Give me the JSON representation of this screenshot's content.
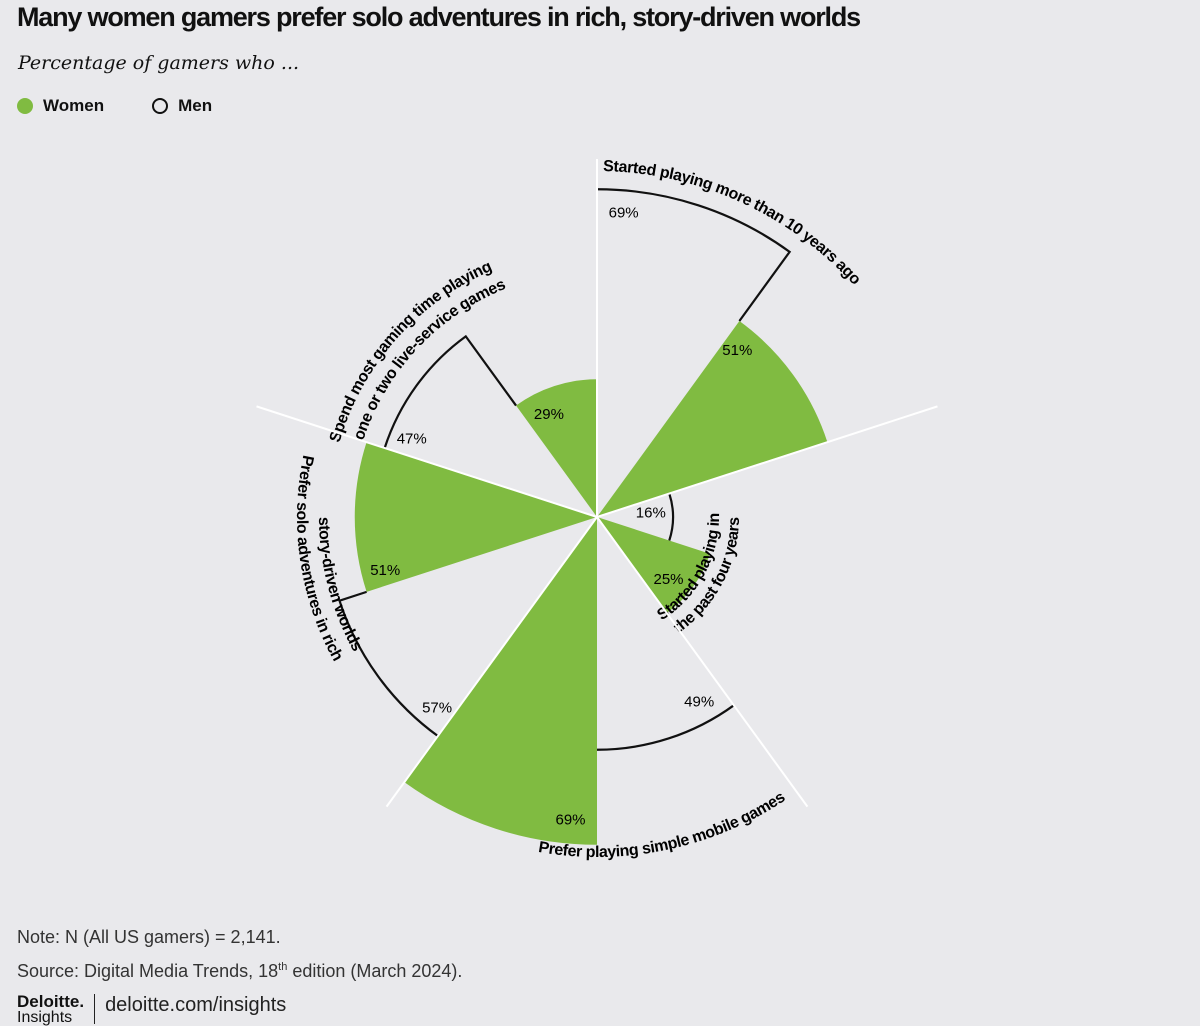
{
  "title": "Many women gamers prefer solo adventures in rich, story-driven worlds",
  "subtitle": "Percentage of gamers who ...",
  "legend": {
    "women": "Women",
    "men": "Men"
  },
  "colors": {
    "women": "#80bb41",
    "men_outline": "#111111",
    "background": "#e9e9ec"
  },
  "chart_data": {
    "type": "polar-bar",
    "title": "Many women gamers prefer solo adventures in rich, story-driven worlds",
    "subtitle": "Percentage of gamers who ...",
    "unit": "%",
    "legend_position": "top-left",
    "series_names": [
      "Women",
      "Men"
    ],
    "categories": [
      {
        "label_lines": [
          "Started playing more than 10 years ago"
        ],
        "women": 51,
        "men": 69
      },
      {
        "label_lines": [
          "Started playing in",
          "the past four years"
        ],
        "women": 25,
        "men": 16
      },
      {
        "label_lines": [
          "Prefer playing simple mobile games"
        ],
        "women": 69,
        "men": 49
      },
      {
        "label_lines": [
          "Prefer solo adventures in rich",
          "story-driven worlds"
        ],
        "women": 51,
        "men": 57
      },
      {
        "label_lines": [
          "Spend most gaming time playing",
          "one or two live-service games"
        ],
        "women": 29,
        "men": 47
      }
    ]
  },
  "note": "Note: N (All US gamers) = 2,141.",
  "source": {
    "prefix": "Source: Digital Media Trends, 18",
    "sup": "th",
    "suffix": " edition (March 2024)."
  },
  "footer": {
    "logo": "Deloitte.",
    "logo_sub": "Insights",
    "url": "deloitte.com/insights"
  }
}
